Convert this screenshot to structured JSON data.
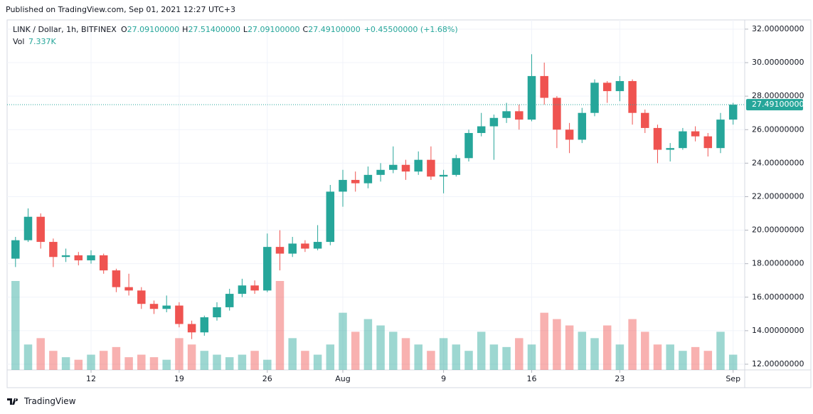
{
  "published": "Published on TradingView.com, Sep 01, 2021 12:27 UTC+3",
  "footer": "TradingView",
  "chart_data": {
    "type": "candlestick",
    "header": {
      "symbol": "LINK / Dollar, 1h, BITFINEX",
      "ohlc": [
        {
          "key": "O",
          "value": "27.09100000"
        },
        {
          "key": "H",
          "value": "27.51400000"
        },
        {
          "key": "L",
          "value": "27.09100000"
        },
        {
          "key": "C",
          "value": "27.49100000"
        }
      ],
      "change": "+0.45500000 (+1.68%)",
      "volume_key": "Vol",
      "volume_value": "7.337K"
    },
    "last_price_label": "27.49100000",
    "categories": [
      null,
      null,
      null,
      null,
      null,
      null,
      "12",
      null,
      null,
      null,
      null,
      null,
      null,
      "19",
      null,
      null,
      null,
      null,
      null,
      null,
      "26",
      null,
      null,
      null,
      null,
      null,
      "Aug",
      null,
      null,
      null,
      null,
      null,
      null,
      null,
      "9",
      null,
      null,
      null,
      null,
      null,
      null,
      "16",
      null,
      null,
      null,
      null,
      null,
      null,
      "23",
      null,
      null,
      null,
      null,
      null,
      null,
      null,
      null,
      "Sep"
    ],
    "open": [
      18.3,
      19.4,
      20.8,
      19.3,
      18.4,
      18.5,
      18.2,
      18.5,
      17.6,
      16.6,
      16.4,
      15.6,
      15.3,
      15.5,
      14.4,
      13.9,
      14.8,
      15.4,
      16.2,
      16.7,
      16.4,
      19.0,
      18.6,
      19.2,
      18.9,
      19.3,
      22.3,
      23.0,
      22.8,
      23.3,
      23.6,
      23.9,
      23.5,
      24.2,
      23.2,
      23.3,
      24.3,
      25.8,
      26.2,
      26.7,
      27.1,
      26.6,
      29.2,
      27.9,
      26.0,
      25.4,
      27.0,
      28.8,
      28.3,
      28.9,
      27.0,
      26.1,
      24.8,
      24.9,
      25.9,
      25.6,
      24.9,
      26.6
    ],
    "high": [
      19.6,
      21.3,
      21.0,
      19.5,
      18.9,
      18.7,
      18.8,
      18.6,
      17.7,
      17.4,
      16.6,
      15.8,
      16.1,
      15.7,
      14.6,
      14.9,
      15.7,
      16.5,
      17.1,
      17.0,
      19.8,
      20.0,
      19.6,
      19.4,
      20.3,
      22.7,
      23.6,
      23.5,
      23.8,
      24.0,
      25.0,
      24.2,
      24.7,
      25.0,
      23.6,
      24.5,
      26.0,
      27.0,
      26.9,
      27.6,
      27.5,
      30.5,
      30.0,
      28.0,
      26.4,
      27.3,
      29.0,
      28.9,
      29.2,
      29.0,
      27.2,
      26.3,
      25.2,
      26.1,
      26.2,
      25.8,
      27.0,
      27.6
    ],
    "low": [
      17.8,
      19.3,
      18.9,
      17.8,
      18.1,
      17.9,
      18.0,
      17.4,
      16.3,
      16.1,
      15.3,
      15.0,
      15.1,
      14.2,
      13.5,
      13.7,
      14.6,
      15.2,
      16.0,
      16.2,
      16.3,
      17.6,
      18.4,
      18.7,
      18.8,
      19.1,
      21.4,
      22.3,
      22.5,
      22.9,
      23.4,
      23.0,
      23.3,
      23.0,
      22.2,
      23.2,
      24.1,
      25.6,
      24.2,
      26.4,
      26.0,
      26.5,
      27.5,
      24.9,
      24.6,
      25.2,
      26.8,
      27.6,
      27.7,
      26.3,
      25.8,
      24.0,
      24.1,
      24.8,
      25.3,
      24.4,
      24.6,
      26.3
    ],
    "close": [
      19.4,
      20.8,
      19.3,
      18.4,
      18.5,
      18.2,
      18.5,
      17.6,
      16.6,
      16.4,
      15.6,
      15.3,
      15.5,
      14.4,
      13.9,
      14.8,
      15.4,
      16.2,
      16.7,
      16.4,
      19.0,
      18.6,
      19.2,
      18.9,
      19.3,
      22.3,
      23.0,
      22.8,
      23.3,
      23.6,
      23.9,
      23.5,
      24.2,
      23.2,
      23.3,
      24.3,
      25.8,
      26.2,
      26.7,
      27.1,
      26.6,
      29.2,
      27.9,
      26.0,
      25.4,
      27.0,
      28.8,
      28.3,
      28.9,
      27.0,
      26.1,
      24.8,
      24.9,
      25.9,
      25.6,
      24.9,
      26.6,
      27.491
    ],
    "volume": [
      70,
      20,
      25,
      15,
      10,
      8,
      12,
      15,
      18,
      10,
      12,
      10,
      8,
      25,
      20,
      15,
      12,
      10,
      12,
      15,
      8,
      70,
      25,
      15,
      12,
      20,
      45,
      30,
      40,
      35,
      30,
      25,
      20,
      15,
      25,
      20,
      15,
      30,
      20,
      18,
      25,
      20,
      45,
      40,
      35,
      30,
      25,
      35,
      20,
      40,
      30,
      20,
      20,
      15,
      18,
      15,
      30,
      12
    ],
    "up_color": "#26a69a",
    "down_color": "#ef5350",
    "ylim": [
      11.66,
      32.55
    ],
    "yticks": [
      {
        "value": 12,
        "label": "12.00000000"
      },
      {
        "value": 14,
        "label": "14.00000000"
      },
      {
        "value": 16,
        "label": "16.00000000"
      },
      {
        "value": 18,
        "label": "18.00000000"
      },
      {
        "value": 20,
        "label": "20.00000000"
      },
      {
        "value": 22,
        "label": "22.00000000"
      },
      {
        "value": 24,
        "label": "24.00000000"
      },
      {
        "value": 26,
        "label": "26.00000000"
      },
      {
        "value": 28,
        "label": "28.00000000"
      },
      {
        "value": 30,
        "label": "30.00000000"
      },
      {
        "value": 32,
        "label": "32.00000000"
      }
    ],
    "grid": true
  }
}
